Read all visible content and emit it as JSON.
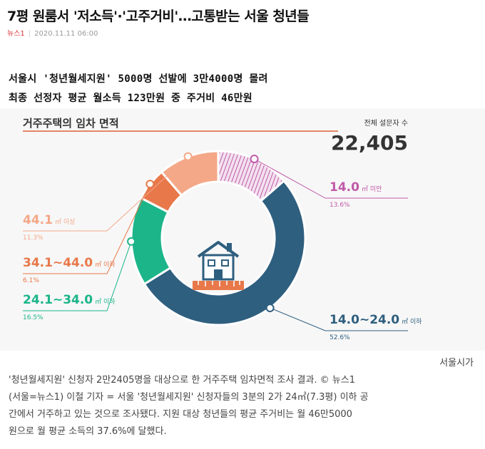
{
  "article": {
    "headline": "7평 원룸서 '저소득'·'고주거비'…고통받는 서울 청년들",
    "source": "뉴스1",
    "datetime": "2020.11.11 06:00",
    "subtitle_1": "서울시 '청년월세지원' 5000명 선발에 3만4000명 몰려",
    "subtitle_2": "최종 선정자 평균 월소득 123만원 중 주거비 46만원",
    "caption_lines": [
      "서울시가",
      "'청년월세지원' 신청자 2만2405명을 대상으로 한 거주주택 임차면적 조사 결과. © 뉴스1",
      "(서울=뉴스1) 이철 기자 = 서울 '청년월세지원' 신청자들의 3분의 2가 24㎡(7.3평) 이하 공",
      "간에서 거주하고 있는 것으로 조사됐다. 지원 대상 청년들의 평균 주거비는 월 46만5000",
      "원으로 월 평균 소득의 37.6%에 달했다."
    ]
  },
  "chart_data": {
    "type": "pie",
    "title": "거주주택의 임차 면적",
    "total_label": "전체 설문자 수",
    "total": "22,405",
    "slices": [
      {
        "name": "14.0㎡ 미만",
        "value_text": "14.0",
        "unit": "㎡ 미만",
        "percent": 13.6,
        "percent_label": "13.6%",
        "color": "#c05aa8",
        "pattern": "hatch"
      },
      {
        "name": "14.0~24.0㎡ 이하",
        "value_text": "14.0~24.0",
        "unit": "㎡ 이하",
        "percent": 52.6,
        "percent_label": "52.6%",
        "color": "#2f5f7f"
      },
      {
        "name": "24.1~34.0㎡ 이하",
        "value_text": "24.1~34.0",
        "unit": "㎡ 이하",
        "percent": 16.5,
        "percent_label": "16.5%",
        "color": "#1cb58a"
      },
      {
        "name": "34.1~44.0㎡ 이하",
        "value_text": "34.1~44.0",
        "unit": "㎡ 이하",
        "percent": 6.1,
        "percent_label": "6.1%",
        "color": "#e8784a"
      },
      {
        "name": "44.1㎡ 이상",
        "value_text": "44.1",
        "unit": "㎡ 이상",
        "percent": 11.3,
        "percent_label": "11.3%",
        "color": "#f4a888"
      }
    ],
    "center_icon": "house-ruler-icon",
    "legend": "callouts"
  }
}
